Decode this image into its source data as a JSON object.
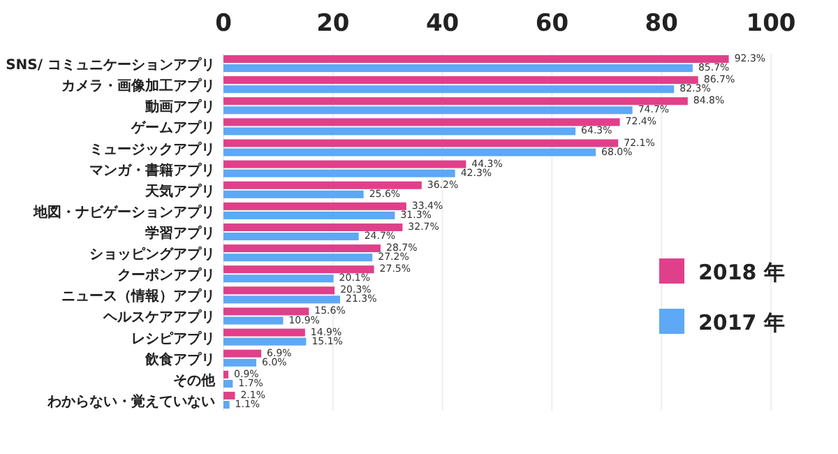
{
  "chart_data": {
    "type": "bar",
    "orientation": "horizontal",
    "categories": [
      "SNS/ コミュニケーションアプリ",
      "カメラ・画像加工アプリ",
      "動画アプリ",
      "ゲームアプリ",
      "ミュージックアプリ",
      "マンガ・書籍アプリ",
      "天気アプリ",
      "地図・ナビゲーションアプリ",
      "学習アプリ",
      "ショッピングアプリ",
      "クーポンアプリ",
      "ニュース（情報）アプリ",
      "ヘルスケアアプリ",
      "レシピアプリ",
      "飲食アプリ",
      "その他",
      "わからない・覚えていない"
    ],
    "series": [
      {
        "name": "2018 年",
        "color": "#e0408a",
        "values": [
          92.3,
          86.7,
          84.8,
          72.4,
          72.1,
          44.3,
          36.2,
          33.4,
          32.7,
          28.7,
          27.5,
          20.3,
          15.6,
          14.9,
          6.9,
          0.9,
          2.1
        ],
        "value_labels": [
          "92.3%",
          "86.7%",
          "84.8%",
          "72.4%",
          "72.1%",
          "44.3%",
          "36.2%",
          "33.4%",
          "32.7%",
          "28.7%",
          "27.5%",
          "20.3%",
          "15.6%",
          "14.9%",
          "6.9%",
          "0.9%",
          "2.1%"
        ]
      },
      {
        "name": "2017 年",
        "color": "#5ea8f5",
        "values": [
          85.7,
          82.3,
          74.7,
          64.3,
          68.0,
          42.3,
          25.6,
          31.3,
          24.7,
          27.2,
          20.1,
          21.3,
          10.9,
          15.1,
          6.0,
          1.7,
          1.1
        ],
        "value_labels": [
          "85.7%",
          "82.3%",
          "74.7%",
          "64.3%",
          "68.0%",
          "42.3%",
          "25.6%",
          "31.3%",
          "24.7%",
          "27.2%",
          "20.1%",
          "21.3%",
          "10.9%",
          "15.1%",
          "6.0%",
          "1.7%",
          "1.1%"
        ]
      }
    ],
    "xlim": [
      0,
      100
    ],
    "xticks": [
      0,
      20,
      40,
      60,
      80,
      100
    ],
    "grid": "x",
    "legend": "right"
  }
}
